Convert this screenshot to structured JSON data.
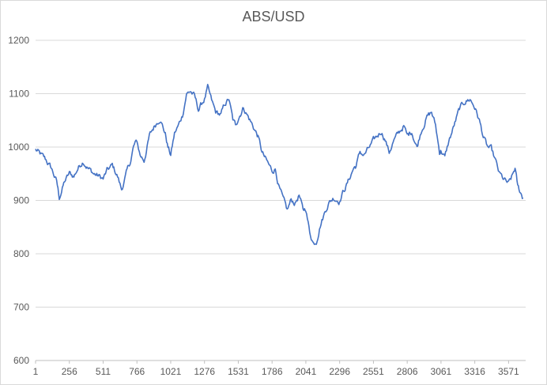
{
  "chart_data": {
    "type": "line",
    "title": "ABS/USD",
    "xlabel": "",
    "ylabel": "",
    "ylim": [
      600,
      1200
    ],
    "xlim": [
      1,
      3700
    ],
    "y_ticks": [
      600,
      700,
      800,
      900,
      1000,
      1100,
      1200
    ],
    "x_tick_labels": [
      "1",
      "256",
      "511",
      "766",
      "1021",
      "1276",
      "1531",
      "1786",
      "2041",
      "2296",
      "2551",
      "2806",
      "3061",
      "3316",
      "3571"
    ],
    "grid": "horizontal",
    "legend": "none",
    "series": [
      {
        "name": "",
        "color": "#4472c4",
        "points": [
          [
            1,
            995
          ],
          [
            40,
            985
          ],
          [
            80,
            975
          ],
          [
            120,
            960
          ],
          [
            160,
            935
          ],
          [
            180,
            905
          ],
          [
            220,
            935
          ],
          [
            256,
            950
          ],
          [
            290,
            945
          ],
          [
            320,
            960
          ],
          [
            360,
            975
          ],
          [
            400,
            960
          ],
          [
            440,
            950
          ],
          [
            480,
            945
          ],
          [
            511,
            940
          ],
          [
            540,
            955
          ],
          [
            580,
            965
          ],
          [
            620,
            945
          ],
          [
            650,
            920
          ],
          [
            680,
            945
          ],
          [
            720,
            975
          ],
          [
            740,
            1000
          ],
          [
            766,
            1010
          ],
          [
            790,
            985
          ],
          [
            820,
            975
          ],
          [
            860,
            1020
          ],
          [
            900,
            1040
          ],
          [
            940,
            1055
          ],
          [
            980,
            1025
          ],
          [
            1000,
            1000
          ],
          [
            1021,
            985
          ],
          [
            1050,
            1025
          ],
          [
            1080,
            1040
          ],
          [
            1110,
            1060
          ],
          [
            1140,
            1100
          ],
          [
            1170,
            1105
          ],
          [
            1200,
            1095
          ],
          [
            1230,
            1070
          ],
          [
            1276,
            1090
          ],
          [
            1300,
            1110
          ],
          [
            1330,
            1085
          ],
          [
            1360,
            1065
          ],
          [
            1400,
            1060
          ],
          [
            1430,
            1080
          ],
          [
            1460,
            1090
          ],
          [
            1490,
            1050
          ],
          [
            1510,
            1040
          ],
          [
            1531,
            1055
          ],
          [
            1570,
            1075
          ],
          [
            1600,
            1060
          ],
          [
            1640,
            1040
          ],
          [
            1680,
            1020
          ],
          [
            1710,
            990
          ],
          [
            1740,
            975
          ],
          [
            1786,
            955
          ],
          [
            1810,
            960
          ],
          [
            1840,
            925
          ],
          [
            1870,
            900
          ],
          [
            1900,
            880
          ],
          [
            1930,
            900
          ],
          [
            1960,
            895
          ],
          [
            1990,
            910
          ],
          [
            2020,
            880
          ],
          [
            2041,
            885
          ],
          [
            2070,
            840
          ],
          [
            2100,
            820
          ],
          [
            2120,
            825
          ],
          [
            2150,
            855
          ],
          [
            2180,
            875
          ],
          [
            2210,
            895
          ],
          [
            2250,
            905
          ],
          [
            2296,
            900
          ],
          [
            2320,
            915
          ],
          [
            2360,
            935
          ],
          [
            2400,
            960
          ],
          [
            2420,
            965
          ],
          [
            2450,
            990
          ],
          [
            2480,
            985
          ],
          [
            2510,
            995
          ],
          [
            2551,
            1010
          ],
          [
            2580,
            1020
          ],
          [
            2610,
            1030
          ],
          [
            2640,
            1015
          ],
          [
            2670,
            990
          ],
          [
            2700,
            1010
          ],
          [
            2740,
            1025
          ],
          [
            2780,
            1040
          ],
          [
            2806,
            1020
          ],
          [
            2840,
            1030
          ],
          [
            2880,
            1000
          ],
          [
            2910,
            1030
          ],
          [
            2950,
            1055
          ],
          [
            2990,
            1065
          ],
          [
            3020,
            1040
          ],
          [
            3050,
            990
          ],
          [
            3061,
            995
          ],
          [
            3090,
            980
          ],
          [
            3120,
            1010
          ],
          [
            3160,
            1040
          ],
          [
            3200,
            1070
          ],
          [
            3240,
            1085
          ],
          [
            3280,
            1090
          ],
          [
            3316,
            1075
          ],
          [
            3350,
            1050
          ],
          [
            3380,
            1020
          ],
          [
            3410,
            1000
          ],
          [
            3440,
            995
          ],
          [
            3470,
            975
          ],
          [
            3500,
            950
          ],
          [
            3530,
            940
          ],
          [
            3571,
            930
          ],
          [
            3600,
            945
          ],
          [
            3620,
            960
          ],
          [
            3640,
            925
          ],
          [
            3660,
            915
          ],
          [
            3680,
            905
          ]
        ]
      }
    ]
  }
}
